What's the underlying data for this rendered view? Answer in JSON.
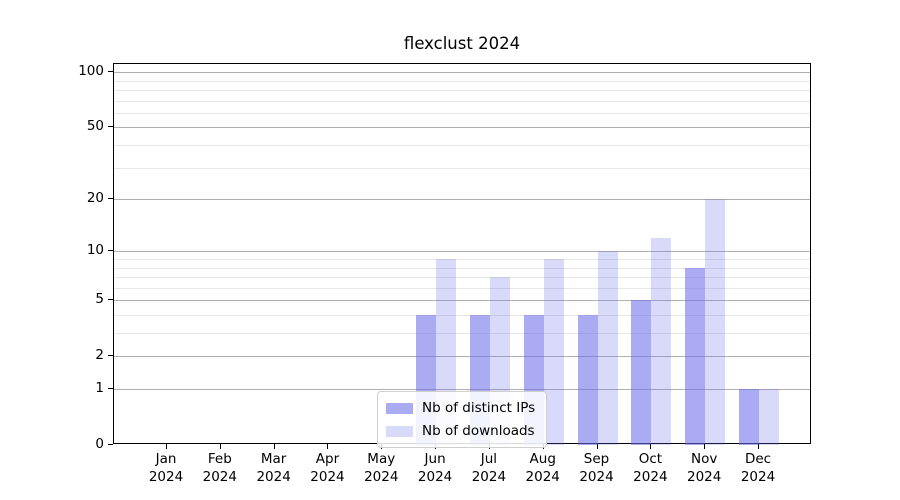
{
  "chart_data": {
    "type": "bar",
    "title": "flexclust 2024",
    "categories": [
      "Jan",
      "Feb",
      "Mar",
      "Apr",
      "May",
      "Jun",
      "Jul",
      "Aug",
      "Sep",
      "Oct",
      "Nov",
      "Dec"
    ],
    "x_tick_year": "2024",
    "series": [
      {
        "name": "Nb of distinct IPs",
        "color": "rgba(110,110,235,0.58)",
        "values": [
          0,
          0,
          0,
          0,
          0,
          4,
          4,
          4,
          4,
          5,
          8,
          1
        ]
      },
      {
        "name": "Nb of downloads",
        "color": "rgba(110,110,235,0.26)",
        "values": [
          0,
          0,
          0,
          0,
          0,
          9,
          7,
          9,
          10,
          12,
          20,
          1
        ]
      }
    ],
    "yscale": "log1p",
    "ylim": [
      0,
      100
    ],
    "y_major_ticks": [
      0,
      1,
      2,
      5,
      10,
      20,
      50,
      100
    ],
    "y_minor_gridlines": [
      3,
      4,
      6,
      7,
      8,
      9,
      30,
      40,
      60,
      70,
      80,
      90
    ],
    "grid": true,
    "legend": {
      "position": "lower center"
    },
    "colors": {
      "grid_major": "#b0b0b0",
      "grid_minor": "#e7e7e7",
      "spine": "#000000",
      "background": "#ffffff",
      "bar_base": "#6e6eeb"
    }
  }
}
